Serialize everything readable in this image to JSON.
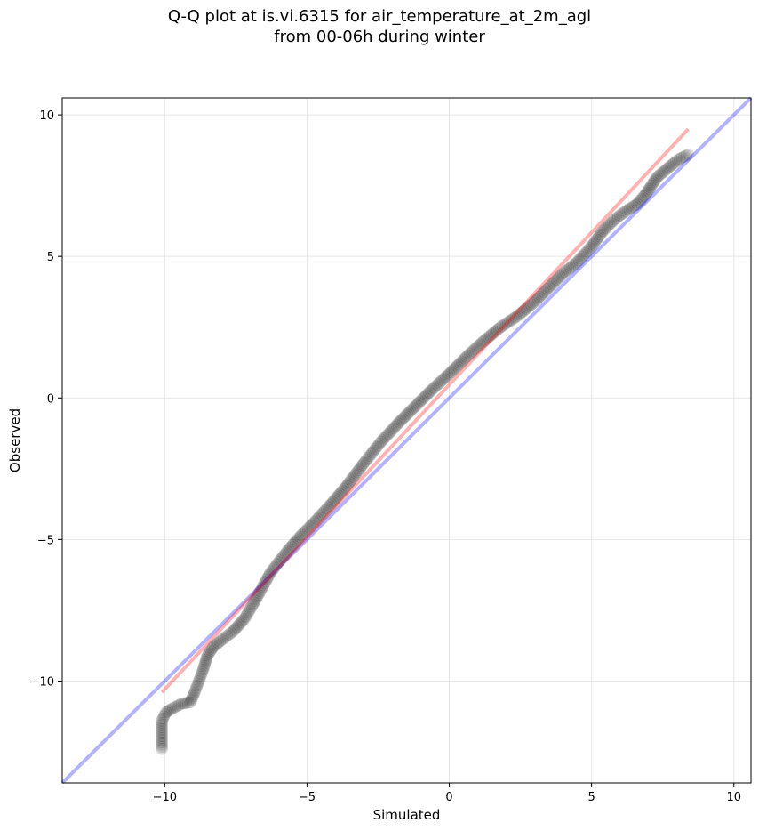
{
  "chart_data": {
    "type": "scatter",
    "title": [
      "Q-Q plot at is.vi.6315 for air_temperature_at_2m_agl",
      "from 00-06h during winter"
    ],
    "xlabel": "Simulated",
    "ylabel": "Observed",
    "xlim": [
      -13.6,
      10.6
    ],
    "ylim": [
      -13.6,
      10.6
    ],
    "xticks": [
      -10,
      -5,
      0,
      5,
      10
    ],
    "yticks": [
      -10,
      -5,
      0,
      5,
      10
    ],
    "xtick_labels": [
      "−10",
      "−5",
      "0",
      "5",
      "10"
    ],
    "ytick_labels": [
      "−10",
      "−5",
      "0",
      "5",
      "10"
    ],
    "grid": true,
    "colors": {
      "points": "#000000",
      "reference_line": "#0000ff",
      "fit_line": "#ff0000",
      "grid": "#e6e6e6"
    },
    "series": [
      {
        "kind": "quantiles",
        "quantile_curve": [
          [
            -10.1,
            -12.4
          ],
          [
            -10.1,
            -11.4
          ],
          [
            -9.95,
            -11.1
          ],
          [
            -9.7,
            -10.95
          ],
          [
            -9.4,
            -10.8
          ],
          [
            -9.1,
            -10.75
          ],
          [
            -8.95,
            -10.4
          ],
          [
            -8.8,
            -10.0
          ],
          [
            -8.65,
            -9.6
          ],
          [
            -8.5,
            -9.1
          ],
          [
            -8.3,
            -8.8
          ],
          [
            -8.0,
            -8.55
          ],
          [
            -7.6,
            -8.25
          ],
          [
            -7.2,
            -7.8
          ],
          [
            -6.9,
            -7.3
          ],
          [
            -6.6,
            -6.75
          ],
          [
            -6.3,
            -6.2
          ],
          [
            -6.0,
            -5.8
          ],
          [
            -5.6,
            -5.3
          ],
          [
            -5.2,
            -4.85
          ],
          [
            -4.8,
            -4.45
          ],
          [
            -4.2,
            -3.8
          ],
          [
            -3.6,
            -3.1
          ],
          [
            -3.0,
            -2.3
          ],
          [
            -2.4,
            -1.55
          ],
          [
            -1.8,
            -0.9
          ],
          [
            -1.2,
            -0.3
          ],
          [
            -0.6,
            0.3
          ],
          [
            0.0,
            0.85
          ],
          [
            0.6,
            1.45
          ],
          [
            1.2,
            2.0
          ],
          [
            1.8,
            2.5
          ],
          [
            2.4,
            2.9
          ],
          [
            3.0,
            3.4
          ],
          [
            3.5,
            3.9
          ],
          [
            4.0,
            4.4
          ],
          [
            4.5,
            4.8
          ],
          [
            5.0,
            5.35
          ],
          [
            5.4,
            5.9
          ],
          [
            5.8,
            6.3
          ],
          [
            6.2,
            6.6
          ],
          [
            6.6,
            6.85
          ],
          [
            6.9,
            7.2
          ],
          [
            7.1,
            7.5
          ],
          [
            7.3,
            7.8
          ],
          [
            7.6,
            8.05
          ],
          [
            7.9,
            8.3
          ],
          [
            8.1,
            8.45
          ],
          [
            8.4,
            8.6
          ]
        ]
      },
      {
        "kind": "reference_line",
        "x": [
          -13.6,
          10.6
        ],
        "y": [
          -13.6,
          10.6
        ]
      },
      {
        "kind": "fit_line",
        "x": [
          -10.1,
          8.4
        ],
        "y": [
          -10.4,
          9.5
        ]
      }
    ]
  }
}
